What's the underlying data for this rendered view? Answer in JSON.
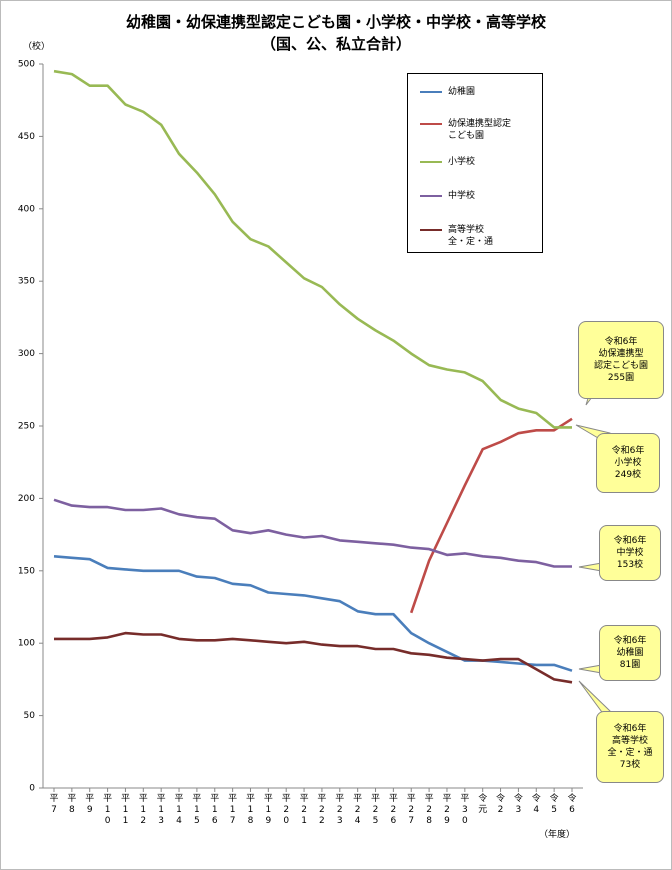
{
  "chart_data": {
    "type": "line",
    "title": "幼稚園・幼保連携型認定こども園・小学校・中学校・高等学校",
    "subtitle": "（国、公、私立合計）",
    "y_label": "（校）",
    "x_label": "（年度）",
    "categories": [
      "平7",
      "平8",
      "平9",
      "平10",
      "平11",
      "平12",
      "平13",
      "平14",
      "平15",
      "平16",
      "平17",
      "平18",
      "平19",
      "平20",
      "平21",
      "平22",
      "平23",
      "平24",
      "平25",
      "平26",
      "平27",
      "平28",
      "平29",
      "平30",
      "令元",
      "令2",
      "令3",
      "令4",
      "令5",
      "令6"
    ],
    "series": [
      {
        "name": "幼稚園",
        "color": "#4a7ebb",
        "values": [
          160,
          159,
          158,
          152,
          151,
          150,
          150,
          150,
          146,
          145,
          141,
          140,
          135,
          134,
          133,
          131,
          129,
          122,
          120,
          120,
          107,
          100,
          94,
          88,
          88,
          87,
          86,
          85,
          85,
          81
        ]
      },
      {
        "name": "幼保連携型認定\nこども園",
        "color": "#be4b48",
        "values": [
          null,
          null,
          null,
          null,
          null,
          null,
          null,
          null,
          null,
          null,
          null,
          null,
          null,
          null,
          null,
          null,
          null,
          null,
          null,
          null,
          121,
          157,
          183,
          209,
          234,
          239,
          245,
          247,
          247,
          255
        ]
      },
      {
        "name": "小学校",
        "color": "#98b954",
        "values": [
          495,
          493,
          485,
          485,
          472,
          467,
          458,
          438,
          425,
          410,
          391,
          379,
          374,
          363,
          352,
          346,
          334,
          324,
          316,
          309,
          300,
          292,
          289,
          287,
          281,
          268,
          262,
          259,
          249,
          249
        ]
      },
      {
        "name": "中学校",
        "color": "#7d60a0",
        "values": [
          199,
          195,
          194,
          194,
          192,
          192,
          193,
          189,
          187,
          186,
          178,
          176,
          178,
          175,
          173,
          174,
          171,
          170,
          169,
          168,
          166,
          165,
          161,
          162,
          160,
          159,
          157,
          156,
          153,
          153
        ]
      },
      {
        "name": "高等学校\n全・定・通",
        "color": "#772c2a",
        "values": [
          103,
          103,
          103,
          104,
          107,
          106,
          106,
          103,
          102,
          102,
          103,
          102,
          101,
          100,
          101,
          99,
          98,
          98,
          96,
          96,
          93,
          92,
          90,
          89,
          88,
          89,
          89,
          82,
          75,
          73
        ]
      }
    ],
    "annotations": [
      "令和6年\n幼保連携型\n認定こども園\n255園",
      "令和6年\n小学校\n249校",
      "令和6年\n中学校\n153校",
      "令和6年\n幼稚園\n81園",
      "令和6年\n高等学校\n全・定・通\n73校"
    ],
    "ylim": [
      0,
      500
    ],
    "yticks": [
      0,
      50,
      100,
      150,
      200,
      250,
      300,
      350,
      400,
      450,
      500
    ],
    "grid": false
  }
}
